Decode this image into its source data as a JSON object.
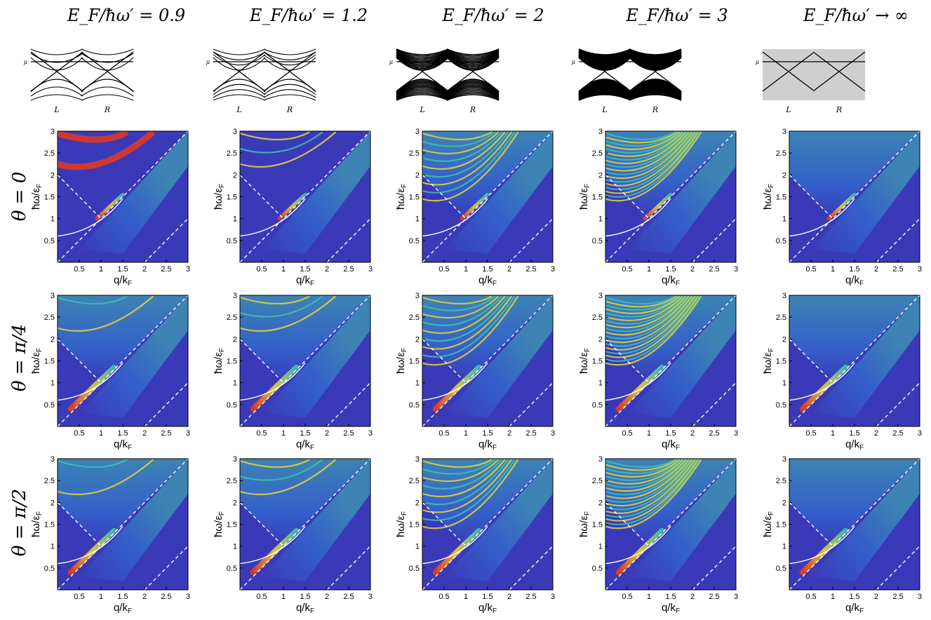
{
  "columns": [
    {
      "title": "E_F/ħω′ = 0.9"
    },
    {
      "title": "E_F/ħω′ = 1.2"
    },
    {
      "title": "E_F/ħω′ = 2"
    },
    {
      "title": "E_F/ħω′ = 3"
    },
    {
      "title": "E_F/ħω′ → ∞"
    }
  ],
  "rows": [
    {
      "label": "θ = 0"
    },
    {
      "label": "θ = π/4"
    },
    {
      "label": "θ = π/2"
    }
  ],
  "band_labels": {
    "mu": "μ",
    "left": "L",
    "right": "R"
  },
  "chart_data": {
    "type": "heatmap",
    "xlabel": "q/k_F",
    "ylabel": "ħω/ε_F",
    "xlim": [
      0,
      3
    ],
    "ylim": [
      0,
      3
    ],
    "x_ticks": [
      "0.5",
      "1",
      "1.5",
      "2",
      "2.5",
      "3"
    ],
    "y_ticks": [
      "0.5",
      "1",
      "1.5",
      "2",
      "2.5",
      "3"
    ],
    "colormap": [
      "#3a3ab8",
      "#2f7fd8",
      "#3fbfb0",
      "#e7d23a",
      "#e83a1a"
    ],
    "reference_lines": [
      {
        "style": "dashed",
        "points": [
          [
            0,
            0
          ],
          [
            3,
            3
          ]
        ]
      },
      {
        "style": "dashed",
        "points": [
          [
            0,
            2
          ],
          [
            1,
            1
          ]
        ]
      },
      {
        "style": "dashed",
        "points": [
          [
            2,
            0
          ],
          [
            3,
            1
          ]
        ]
      },
      {
        "style": "solid",
        "x_range": [
          0,
          1.5
        ],
        "y_at_0": 0.6
      }
    ]
  }
}
